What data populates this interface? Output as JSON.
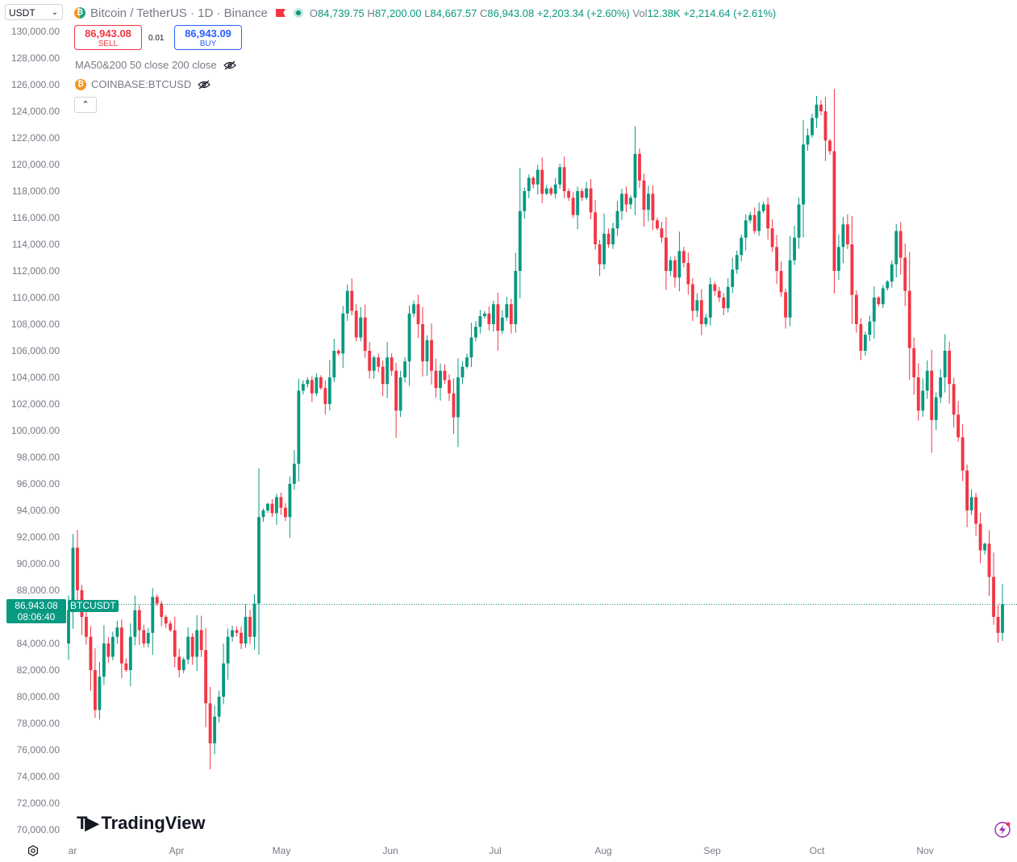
{
  "header": {
    "quote_currency": "USDT",
    "symbol_title": "Bitcoin / TetherUS · 1D · Binance",
    "ohlc": {
      "open_key": "O",
      "open": "84,739.75",
      "high_key": "H",
      "high": "87,200.00",
      "low_key": "L",
      "low": "84,667.57",
      "close_key": "C",
      "close": "86,943.08",
      "change": "+2,203.34 (+2.60%)",
      "vol_key": "Vol",
      "vol": "12.38K",
      "vol_change": "+2,214.64 (+2.61%)"
    }
  },
  "trade": {
    "sell_price": "86,943.08",
    "sell_label": "SELL",
    "spread": "0.01",
    "buy_price": "86,943.09",
    "buy_label": "BUY"
  },
  "indicators": {
    "ma_label": "MA50&200 50 close 200 close",
    "compare_label": "COINBASE:BTCUSD"
  },
  "price_label": {
    "value": "86,943.08",
    "countdown": "08:06:40",
    "symbol": "BTCUSDT"
  },
  "brand": {
    "name": "TradingView"
  },
  "colors": {
    "up": "#089981",
    "down": "#f23645",
    "grid_text": "#787b86"
  },
  "chart_data": {
    "type": "candlestick",
    "title": "Bitcoin / TetherUS · 1D · Binance",
    "ylim": [
      70000,
      130000
    ],
    "y_ticks": [
      "130,000.00",
      "128,000.00",
      "126,000.00",
      "124,000.00",
      "122,000.00",
      "120,000.00",
      "118,000.00",
      "116,000.00",
      "114,000.00",
      "112,000.00",
      "110,000.00",
      "108,000.00",
      "106,000.00",
      "104,000.00",
      "102,000.00",
      "100,000.00",
      "98,000.00",
      "96,000.00",
      "94,000.00",
      "92,000.00",
      "90,000.00",
      "88,000.00",
      "86,000.00",
      "84,000.00",
      "82,000.00",
      "80,000.00",
      "78,000.00",
      "76,000.00",
      "74,000.00",
      "72,000.00",
      "70,000.00"
    ],
    "x_ticks": [
      "ar",
      "Apr",
      "May",
      "Jun",
      "Jul",
      "Aug",
      "Sep",
      "Oct",
      "Nov"
    ],
    "last_price": 86943.08,
    "close": [
      86500,
      91200,
      88000,
      86000,
      84500,
      82000,
      79000,
      81500,
      84000,
      83000,
      84500,
      85200,
      82500,
      82000,
      84500,
      86500,
      85000,
      84000,
      84800,
      87500,
      87000,
      86000,
      85500,
      85000,
      83000,
      82000,
      82800,
      84500,
      83000,
      85000,
      83500,
      79500,
      76500,
      78500,
      80000,
      82500,
      84500,
      85000,
      84800,
      84000,
      86000,
      84500,
      87000,
      93500,
      94000,
      94500,
      93800,
      95000,
      94200,
      93500,
      96000,
      97500,
      103000,
      103500,
      103800,
      102800,
      104000,
      103200,
      102000,
      104000,
      106000,
      105800,
      108800,
      110500,
      109000,
      107000,
      108500,
      106000,
      104500,
      105500,
      104800,
      103500,
      105500,
      104500,
      101500,
      104000,
      105200,
      108800,
      109500,
      108000,
      105200,
      106800,
      104500,
      103200,
      104500,
      103800,
      102800,
      101000,
      104000,
      104800,
      105500,
      107000,
      107800,
      108600,
      108800,
      108000,
      109500,
      107500,
      108500,
      109500,
      108000,
      112000,
      116500,
      118000,
      119000,
      118500,
      119600,
      117800,
      118200,
      117800,
      118500,
      119800,
      118000,
      117500,
      116200,
      118000,
      117500,
      118200,
      116400,
      114000,
      112500,
      114800,
      114000,
      115200,
      116500,
      117800,
      117000,
      117500,
      120800,
      118800,
      116600,
      117800,
      115800,
      115200,
      114500,
      112000,
      112800,
      111500,
      113500,
      112600,
      111000,
      109000,
      109800,
      108000,
      108500,
      111000,
      110500,
      110000,
      109200,
      110800,
      112100,
      113200,
      114500,
      115800,
      116200,
      115000,
      116500,
      117000,
      115200,
      113800,
      112000,
      110400,
      108500,
      112800,
      114500,
      117000,
      121500,
      122200,
      123500,
      124500,
      124000,
      121800,
      121000,
      112000,
      113800,
      115500,
      114000,
      110200,
      108000,
      106000,
      107200,
      108200,
      110000,
      109500,
      110700,
      111200,
      112500,
      115000,
      113000,
      110500,
      106200,
      104000,
      101500,
      103000,
      104500,
      100800,
      102500,
      104000,
      106000,
      103500,
      101200,
      99500,
      97000,
      94000,
      95000,
      93000,
      91000,
      91500,
      89000,
      86000,
      84800,
      86943
    ]
  }
}
